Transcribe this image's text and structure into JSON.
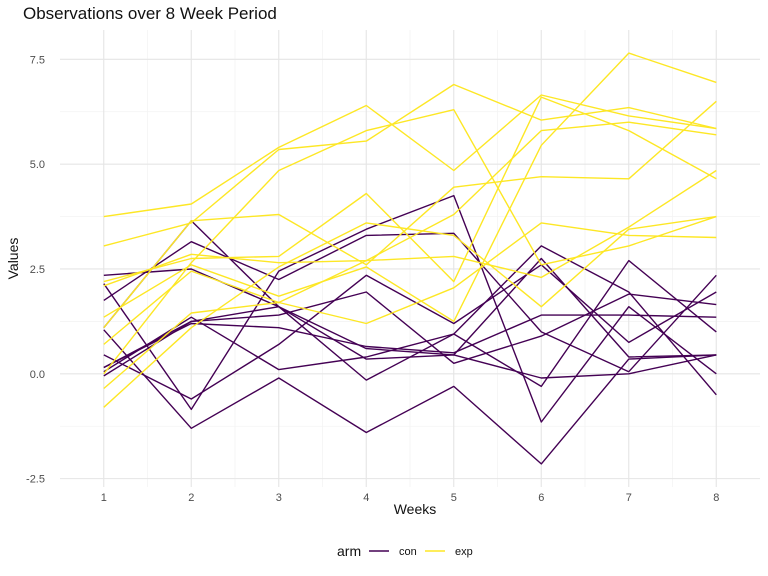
{
  "chart_data": {
    "type": "line",
    "title": "Observations over 8 Week Period",
    "xlabel": "Weeks",
    "ylabel": "Values",
    "x": [
      1,
      2,
      3,
      4,
      5,
      6,
      7,
      8
    ],
    "xlim": [
      0.5,
      8.5
    ],
    "ylim": [
      -2.7,
      8.2
    ],
    "x_ticks": [
      1,
      2,
      3,
      4,
      5,
      6,
      7,
      8
    ],
    "y_ticks": [
      -2.5,
      0.0,
      2.5,
      5.0,
      7.5
    ],
    "y_tick_labels": [
      "-2.5",
      "0.0",
      "2.5",
      "5.0",
      "7.5"
    ],
    "grid": true,
    "legend": {
      "title": "arm",
      "position": "bottom",
      "entries": [
        "con",
        "exp"
      ]
    },
    "colors": {
      "con": "#440154",
      "exp": "#fde725"
    },
    "series": [
      {
        "group": "con",
        "values": [
          1.1,
          3.65,
          1.6,
          0.35,
          0.45,
          -0.1,
          0.0,
          0.45
        ]
      },
      {
        "group": "con",
        "values": [
          1.75,
          3.15,
          2.25,
          3.3,
          3.35,
          1.0,
          0.05,
          2.35
        ]
      },
      {
        "group": "con",
        "values": [
          2.35,
          2.5,
          1.6,
          0.6,
          0.45,
          2.75,
          0.4,
          0.45
        ]
      },
      {
        "group": "con",
        "values": [
          0.45,
          -0.6,
          0.7,
          2.35,
          1.2,
          2.6,
          0.75,
          1.95
        ]
      },
      {
        "group": "con",
        "values": [
          0.05,
          1.35,
          0.1,
          0.4,
          0.95,
          3.05,
          1.95,
          -0.5
        ]
      },
      {
        "group": "con",
        "values": [
          -0.05,
          1.25,
          1.4,
          1.95,
          0.25,
          0.9,
          1.9,
          1.65
        ]
      },
      {
        "group": "con",
        "values": [
          0.15,
          1.2,
          1.1,
          0.65,
          0.5,
          1.4,
          1.4,
          1.35
        ]
      },
      {
        "group": "con",
        "values": [
          0.15,
          1.25,
          1.6,
          -0.15,
          0.95,
          -0.3,
          2.7,
          1.0
        ]
      },
      {
        "group": "con",
        "values": [
          2.15,
          -0.85,
          2.45,
          3.45,
          4.25,
          -1.15,
          1.6,
          0.0
        ]
      },
      {
        "group": "con",
        "values": [
          1.05,
          -1.3,
          -0.1,
          -1.4,
          -0.3,
          -2.15,
          0.35,
          0.45
        ]
      },
      {
        "group": "exp",
        "values": [
          3.75,
          4.05,
          5.4,
          6.4,
          4.85,
          6.65,
          6.15,
          5.85
        ]
      },
      {
        "group": "exp",
        "values": [
          3.05,
          3.6,
          5.35,
          5.55,
          6.9,
          6.05,
          6.35,
          5.85
        ]
      },
      {
        "group": "exp",
        "values": [
          2.2,
          2.75,
          2.8,
          4.3,
          2.2,
          6.6,
          5.8,
          4.65
        ]
      },
      {
        "group": "exp",
        "values": [
          1.35,
          2.6,
          1.85,
          2.55,
          1.25,
          5.45,
          7.65,
          6.95
        ]
      },
      {
        "group": "exp",
        "values": [
          1.1,
          3.65,
          3.8,
          2.6,
          4.45,
          4.7,
          4.65,
          6.5
        ]
      },
      {
        "group": "exp",
        "values": [
          2.1,
          2.85,
          2.65,
          2.7,
          3.8,
          5.8,
          6.0,
          5.7
        ]
      },
      {
        "group": "exp",
        "values": [
          0.0,
          2.65,
          4.85,
          5.8,
          6.3,
          2.6,
          3.05,
          3.75
        ]
      },
      {
        "group": "exp",
        "values": [
          0.7,
          2.45,
          1.7,
          1.2,
          2.05,
          3.6,
          3.3,
          3.25
        ]
      },
      {
        "group": "exp",
        "values": [
          -0.35,
          1.45,
          1.7,
          2.7,
          2.8,
          2.3,
          3.5,
          4.85
        ]
      },
      {
        "group": "exp",
        "values": [
          -0.8,
          1.1,
          2.55,
          3.6,
          3.3,
          1.6,
          3.45,
          3.75
        ]
      }
    ]
  }
}
